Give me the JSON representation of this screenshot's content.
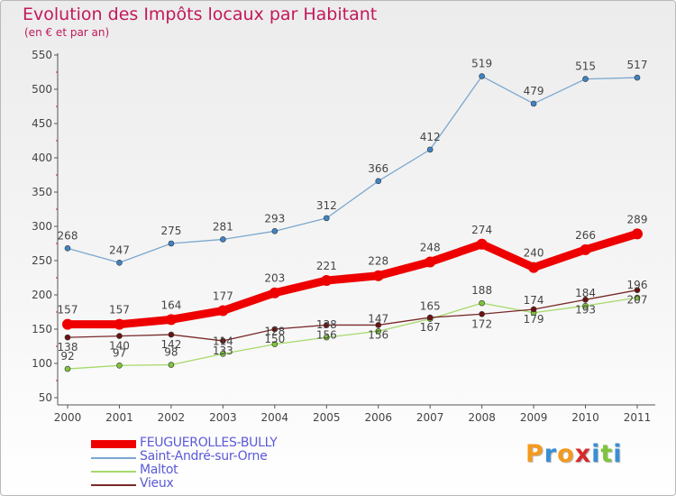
{
  "chart_data": {
    "type": "line",
    "title": "Evolution des Impôts locaux par Habitant",
    "subtitle": "(en € et par an)",
    "x": [
      "2000",
      "2001",
      "2002",
      "2003",
      "2004",
      "2005",
      "2006",
      "2007",
      "2008",
      "2009",
      "2010",
      "2011"
    ],
    "ylim": [
      50,
      550
    ],
    "yticks": [
      50,
      100,
      150,
      200,
      250,
      300,
      350,
      400,
      450,
      500,
      550
    ],
    "grid": false,
    "legend_position": "bottom-left",
    "series": [
      {
        "name": "Saint-André-sur-Orne",
        "color": "#7ba7cf",
        "marker": "#3f84c4",
        "values": [
          268,
          247,
          275,
          281,
          293,
          312,
          366,
          412,
          519,
          479,
          515,
          517
        ]
      },
      {
        "name": "Maltot",
        "color": "#a6d96a",
        "marker": "#7ec43c",
        "values": [
          92,
          97,
          98,
          114,
          128,
          138,
          147,
          165,
          188,
          174,
          184,
          196
        ]
      },
      {
        "name": "Vieux",
        "color": "#7a2a2a",
        "marker": "#6b1212",
        "values": [
          138,
          140,
          142,
          133,
          150,
          156,
          156,
          167,
          172,
          179,
          193,
          207
        ]
      },
      {
        "name": "FEUGUEROLLES-BULLY",
        "color": "#ee0000",
        "marker": "#ee0000",
        "values": [
          157,
          157,
          164,
          177,
          203,
          221,
          228,
          248,
          274,
          240,
          266,
          289
        ]
      }
    ],
    "data_labels": {
      "Saint-André-sur-Orne": [
        "268",
        "247",
        "275",
        "281",
        "293",
        "312",
        "366",
        "412",
        "519",
        "479",
        "515",
        "517"
      ],
      "FEUGUEROLLES-BULLY": [
        "157",
        "157",
        "164",
        "177",
        "203",
        "221",
        "228",
        "248",
        "274",
        "240",
        "266",
        "289"
      ],
      "Maltot": [
        "92",
        "97",
        "98",
        "114",
        "128",
        "138",
        "147",
        "165",
        "188",
        "174",
        "184",
        "196"
      ],
      "Vieux": [
        "138",
        "140",
        "142",
        "133",
        "150",
        "156",
        "156",
        "167",
        "172",
        "179",
        "193",
        "207"
      ]
    },
    "legend_order": [
      "FEUGUEROLLES-BULLY",
      "Saint-André-sur-Orne",
      "Maltot",
      "Vieux"
    ]
  },
  "logo": {
    "text": "Proxiti",
    "letters": [
      {
        "ch": "P",
        "color": "#f39a1e"
      },
      {
        "ch": "r",
        "color": "#3a8fd6"
      },
      {
        "ch": "o",
        "color": "#f39a1e"
      },
      {
        "ch": "x",
        "color": "#d62b2b"
      },
      {
        "ch": "i",
        "color": "#3a8fd6"
      },
      {
        "ch": "t",
        "color": "#7ec43c"
      },
      {
        "ch": "i",
        "color": "#3a8fd6"
      }
    ]
  }
}
